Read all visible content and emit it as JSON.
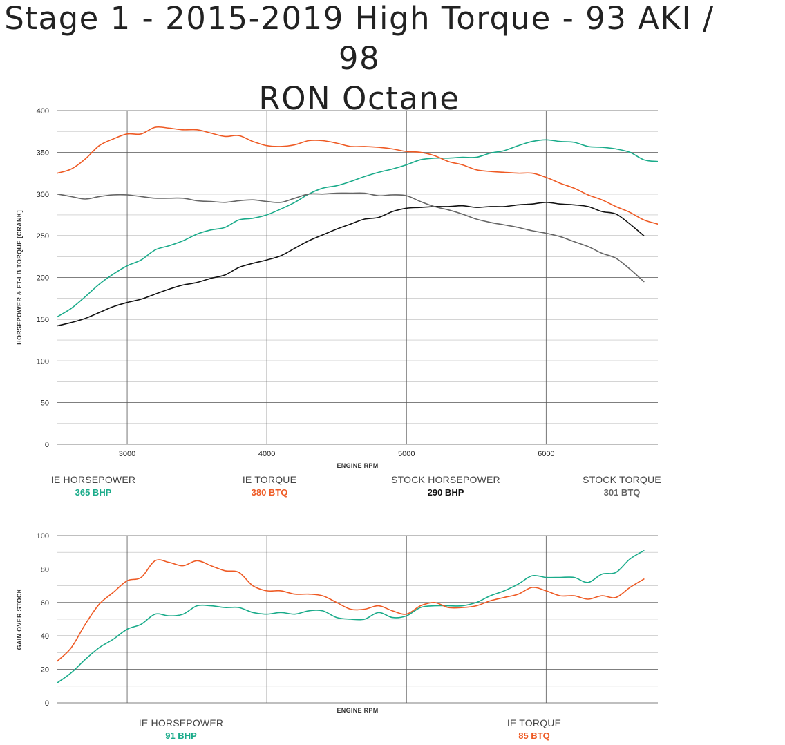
{
  "title": {
    "line1": "Stage 1 - 2015-2019 High Torque - 93 AKI / 98",
    "line2": "RON Octane"
  },
  "colors": {
    "ie_hp": "#1aab8a",
    "ie_tq": "#ee5a24",
    "stock_hp": "#111111",
    "stock_tq": "#666666",
    "grid": "#555555"
  },
  "chart_data": [
    {
      "type": "line",
      "xlabel": "ENGINE RPM",
      "ylabel": "HORSEPOWER & FT-LB TORQUE [CRANK]",
      "xlim": [
        2500,
        6800
      ],
      "ylim": [
        0,
        400
      ],
      "x_ticks": [
        3000,
        4000,
        5000,
        6000
      ],
      "y_ticks": [
        0,
        50,
        100,
        150,
        200,
        250,
        300,
        350,
        400
      ],
      "series": [
        {
          "name": "IE HORSEPOWER",
          "key": "ie_hp",
          "x": [
            2500,
            2600,
            2700,
            2800,
            2900,
            3000,
            3100,
            3200,
            3300,
            3400,
            3500,
            3600,
            3700,
            3800,
            3900,
            4000,
            4100,
            4200,
            4300,
            4400,
            4500,
            4600,
            4700,
            4800,
            4900,
            5000,
            5100,
            5200,
            5300,
            5400,
            5500,
            5600,
            5700,
            5800,
            5900,
            6000,
            6100,
            6200,
            6300,
            6400,
            6500,
            6600,
            6700,
            6800
          ],
          "y": [
            153,
            163,
            177,
            192,
            204,
            214,
            221,
            233,
            238,
            244,
            252,
            257,
            260,
            269,
            271,
            275,
            282,
            290,
            300,
            307,
            310,
            315,
            321,
            326,
            330,
            335,
            341,
            343,
            343,
            344,
            344,
            349,
            352,
            358,
            363,
            365,
            363,
            362,
            357,
            356,
            354,
            350,
            341,
            339
          ]
        },
        {
          "name": "IE TORQUE",
          "key": "ie_tq",
          "x": [
            2500,
            2600,
            2700,
            2800,
            2900,
            3000,
            3100,
            3200,
            3300,
            3400,
            3500,
            3600,
            3700,
            3800,
            3900,
            4000,
            4100,
            4200,
            4300,
            4400,
            4500,
            4600,
            4700,
            4800,
            4900,
            5000,
            5100,
            5200,
            5300,
            5400,
            5500,
            5600,
            5700,
            5800,
            5900,
            6000,
            6100,
            6200,
            6300,
            6400,
            6500,
            6600,
            6700,
            6800
          ],
          "y": [
            325,
            330,
            342,
            358,
            366,
            372,
            372,
            380,
            379,
            377,
            377,
            373,
            369,
            370,
            363,
            358,
            357,
            359,
            364,
            364,
            361,
            357,
            357,
            356,
            354,
            351,
            350,
            346,
            339,
            335,
            329,
            327,
            326,
            325,
            325,
            320,
            313,
            307,
            299,
            293,
            285,
            278,
            269,
            264
          ]
        },
        {
          "name": "STOCK HORSEPOWER",
          "key": "stock_hp",
          "x": [
            2500,
            2600,
            2700,
            2800,
            2900,
            3000,
            3100,
            3200,
            3300,
            3400,
            3500,
            3600,
            3700,
            3800,
            3900,
            4000,
            4100,
            4200,
            4300,
            4400,
            4500,
            4600,
            4700,
            4800,
            4900,
            5000,
            5100,
            5200,
            5300,
            5400,
            5500,
            5600,
            5700,
            5800,
            5900,
            6000,
            6100,
            6200,
            6300,
            6400,
            6500,
            6600,
            6700
          ],
          "y": [
            142,
            146,
            151,
            158,
            165,
            170,
            174,
            180,
            186,
            191,
            194,
            199,
            203,
            212,
            217,
            221,
            226,
            235,
            244,
            251,
            258,
            264,
            270,
            272,
            279,
            283,
            284,
            285,
            285,
            286,
            284,
            285,
            285,
            287,
            288,
            290,
            288,
            287,
            285,
            279,
            276,
            264,
            250
          ]
        },
        {
          "name": "STOCK TORQUE",
          "key": "stock_tq",
          "x": [
            2500,
            2600,
            2700,
            2800,
            2900,
            3000,
            3100,
            3200,
            3300,
            3400,
            3500,
            3600,
            3700,
            3800,
            3900,
            4000,
            4100,
            4200,
            4300,
            4400,
            4500,
            4600,
            4700,
            4800,
            4900,
            5000,
            5100,
            5200,
            5300,
            5400,
            5500,
            5600,
            5700,
            5800,
            5900,
            6000,
            6100,
            6200,
            6300,
            6400,
            6500,
            6600,
            6700
          ],
          "y": [
            300,
            297,
            294,
            297,
            299,
            299,
            297,
            295,
            295,
            295,
            292,
            291,
            290,
            292,
            293,
            291,
            290,
            295,
            300,
            300,
            301,
            301,
            301,
            298,
            299,
            298,
            291,
            285,
            281,
            276,
            270,
            266,
            263,
            260,
            256,
            253,
            249,
            243,
            237,
            229,
            223,
            210,
            195
          ]
        }
      ],
      "legend": [
        {
          "name": "IE HORSEPOWER",
          "value": "365 BHP",
          "key": "ie_hp"
        },
        {
          "name": "IE TORQUE",
          "value": "380 BTQ",
          "key": "ie_tq"
        },
        {
          "name": "STOCK HORSEPOWER",
          "value": "290 BHP",
          "key": "stock_hp"
        },
        {
          "name": "STOCK TORQUE",
          "value": "301 BTQ",
          "key": "stock_tq"
        }
      ]
    },
    {
      "type": "line",
      "xlabel": "ENGINE RPM",
      "ylabel": "GAIN OVER STOCK",
      "xlim": [
        2500,
        6800
      ],
      "ylim": [
        0,
        100
      ],
      "x_ticks": [],
      "y_ticks": [
        0,
        20,
        40,
        60,
        80,
        100
      ],
      "series": [
        {
          "name": "IE HORSEPOWER",
          "key": "ie_hp",
          "x": [
            2500,
            2600,
            2700,
            2800,
            2900,
            3000,
            3100,
            3200,
            3300,
            3400,
            3500,
            3600,
            3700,
            3800,
            3900,
            4000,
            4100,
            4200,
            4300,
            4400,
            4500,
            4600,
            4700,
            4800,
            4900,
            5000,
            5100,
            5200,
            5300,
            5400,
            5500,
            5600,
            5700,
            5800,
            5900,
            6000,
            6100,
            6200,
            6300,
            6400,
            6500,
            6600,
            6700
          ],
          "y": [
            12,
            18,
            26,
            33,
            38,
            44,
            47,
            53,
            52,
            53,
            58,
            58,
            57,
            57,
            54,
            53,
            54,
            53,
            55,
            55,
            51,
            50,
            50,
            54,
            51,
            52,
            57,
            58,
            58,
            58,
            60,
            64,
            67,
            71,
            76,
            75,
            75,
            75,
            72,
            77,
            78,
            86,
            91
          ]
        },
        {
          "name": "IE TORQUE",
          "key": "ie_tq",
          "x": [
            2500,
            2600,
            2700,
            2800,
            2900,
            3000,
            3100,
            3200,
            3300,
            3400,
            3500,
            3600,
            3700,
            3800,
            3900,
            4000,
            4100,
            4200,
            4300,
            4400,
            4500,
            4600,
            4700,
            4800,
            4900,
            5000,
            5100,
            5200,
            5300,
            5400,
            5500,
            5600,
            5700,
            5800,
            5900,
            6000,
            6100,
            6200,
            6300,
            6400,
            6500,
            6600,
            6700
          ],
          "y": [
            25,
            33,
            47,
            59,
            66,
            73,
            75,
            85,
            84,
            82,
            85,
            82,
            79,
            78,
            70,
            67,
            67,
            65,
            65,
            64,
            60,
            56,
            56,
            58,
            55,
            53,
            58,
            60,
            57,
            57,
            58,
            61,
            63,
            65,
            69,
            67,
            64,
            64,
            62,
            64,
            63,
            69,
            74
          ]
        }
      ],
      "legend": [
        {
          "name": "IE HORSEPOWER",
          "value": "91 BHP",
          "key": "ie_hp"
        },
        {
          "name": "IE TORQUE",
          "value": "85 BTQ",
          "key": "ie_tq"
        }
      ]
    }
  ]
}
